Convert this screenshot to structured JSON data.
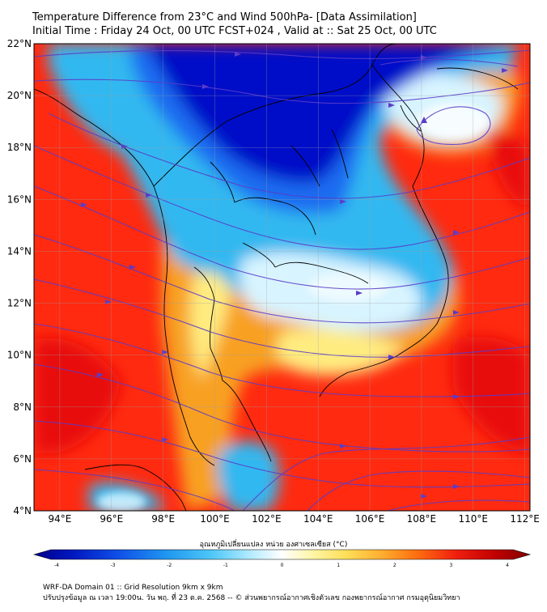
{
  "header": {
    "title_line1": "Temperature Difference from 23°C and Wind 500hPa- [Data Assimilation]",
    "title_line2": "Initial Time : Friday 24 Oct, 00 UTC FCST+024 , Valid at ::  Sat 25 Oct, 00 UTC"
  },
  "map": {
    "lat_labels": [
      "22°N",
      "20°N",
      "18°N",
      "16°N",
      "14°N",
      "12°N",
      "10°N",
      "8°N",
      "6°N",
      "4°N"
    ],
    "lon_labels": [
      "94°E",
      "96°E",
      "98°E",
      "100°E",
      "102°E",
      "104°E",
      "106°E",
      "108°E",
      "110°E",
      "112°E"
    ],
    "lat_range": [
      4,
      22
    ],
    "lon_range": [
      93,
      112.2
    ],
    "field_colors": {
      "cold_deep": "#0010c8",
      "cold": "#1e6cf0",
      "cool": "#30b8f0",
      "near_zero": "#d8f4ff",
      "warm_light": "#ffec80",
      "warm": "#f8a020",
      "hot": "#ff2a10",
      "hot_deep": "#e80808"
    },
    "streamline_color": "#5a3cc8",
    "coast_color": "#000000"
  },
  "colorbar": {
    "title": "อุณหภูมิเปลี่ยนแปลง หน่วย องศาเซลเซียส (°C)",
    "ticks": [
      "-4",
      "-3",
      "-2",
      "-1",
      "0",
      "1",
      "2",
      "3",
      "4"
    ],
    "range": [
      -4,
      4
    ],
    "colors": [
      "#00008b",
      "#0020d0",
      "#1060f0",
      "#20a0f0",
      "#60d0f8",
      "#c8f0ff",
      "#ffffff",
      "#fff8b0",
      "#ffe060",
      "#ffb030",
      "#ff7010",
      "#f02010",
      "#c00000",
      "#800000"
    ]
  },
  "footer": {
    "line1": "WRF-DA Domain 01 :: Grid Resolution 9km x 9km",
    "line2": "ปรับปรุงข้อมูล ณ เวลา 19:00น. วัน พฤ. ที่ 23 ต.ค. 2568 -- © ส่วนพยากรณ์อากาศเชิงตัวเลข กองพยากรณ์อากาศ กรมอุตุนิยมวิทยา"
  }
}
